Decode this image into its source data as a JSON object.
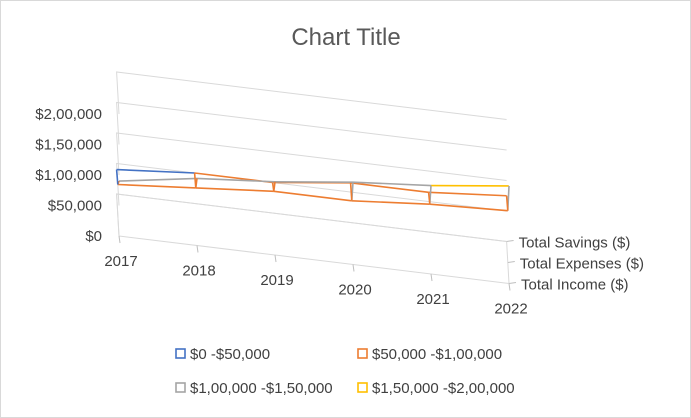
{
  "chart_data": {
    "type": "surface-3d",
    "title": "Chart Title",
    "categories": [
      "2017",
      "2018",
      "2019",
      "2020",
      "2021",
      "2022"
    ],
    "series": [
      {
        "name": "Total Income ($)",
        "values": [
          90000,
          110000,
          120000,
          135000,
          145000,
          160000
        ]
      },
      {
        "name": "Total Expenses ($)",
        "values": [
          50000,
          60000,
          70000,
          70000,
          80000,
          85000
        ]
      },
      {
        "name": "Total Savings ($)",
        "values": [
          40000,
          50000,
          50000,
          65000,
          65000,
          75000
        ]
      }
    ],
    "value_axis": {
      "min": 0,
      "max": 200000,
      "major_unit": 50000,
      "tick_labels": [
        "$0",
        "$50,000",
        "$1,00,000",
        "$1,50,000",
        "$2,00,000"
      ]
    },
    "legend": {
      "position": "bottom",
      "entries": [
        {
          "label": "$0 -$50,000",
          "color": "#4472c4"
        },
        {
          "label": "$50,000 -$1,00,000",
          "color": "#ed7d31"
        },
        {
          "label": "$1,00,000 -$1,50,000",
          "color": "#a5a5a5"
        },
        {
          "label": "$1,50,000 -$2,00,000",
          "color": "#ffc000"
        }
      ]
    },
    "grid": true
  }
}
